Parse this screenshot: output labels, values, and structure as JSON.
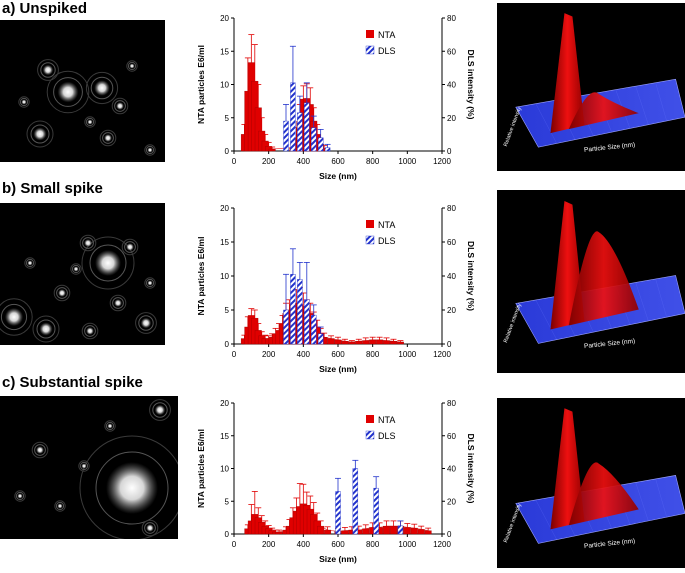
{
  "panels": [
    {
      "label": "a) Unspiked",
      "chart_data": {
        "type": "bar",
        "title": "",
        "xlabel": "Size (nm)",
        "ylabel": "NTA particles E6/ml",
        "y2label": "DLS intensity (%)",
        "xlim": [
          0,
          1200
        ],
        "ylim": [
          0,
          20
        ],
        "y2lim": [
          0,
          80
        ],
        "xticks": [
          0,
          200,
          400,
          600,
          800,
          1000,
          1200
        ],
        "yticks": [
          0,
          5,
          10,
          15,
          20
        ],
        "y2ticks": [
          0,
          20,
          40,
          60,
          80
        ],
        "legend": [
          "NTA",
          "DLS"
        ],
        "legend_position": "top-right",
        "series": [
          {
            "name": "NTA",
            "color": "#e00000",
            "axis": "left",
            "x": [
              60,
              80,
              100,
              120,
              140,
              160,
              180,
              200,
              220,
              340,
              360,
              380,
              400,
              420,
              440,
              460,
              480,
              500,
              520
            ],
            "y": [
              2.5,
              9,
              13.3,
              10.5,
              6.5,
              3.0,
              1.5,
              0.7,
              0.3,
              0.5,
              2.0,
              4.5,
              7.8,
              7.9,
              7.0,
              4.5,
              2.5,
              1.0,
              0.4
            ],
            "err": [
              1.5,
              5,
              4.2,
              5.5,
              3.5,
              2.0,
              1.0,
              0.6,
              0.3,
              0.5,
              1.5,
              2.5,
              2.0,
              2.2,
              2.5,
              2.0,
              1.5,
              0.8,
              0.4
            ]
          },
          {
            "name": "DLS",
            "color": "#2233cc",
            "axis": "right",
            "x": [
              300,
              340,
              380,
              420,
              460,
              500,
              540
            ],
            "y": [
              18,
              41,
              23,
              29,
              14,
              8,
              2
            ],
            "err": [
              10,
              22,
              10,
              12,
              7,
              5,
              2
            ]
          }
        ]
      },
      "image": {
        "dots": [
          [
            68,
            72,
            8
          ],
          [
            102,
            68,
            6
          ],
          [
            40,
            114,
            5
          ],
          [
            48,
            50,
            4
          ],
          [
            108,
            118,
            3
          ],
          [
            132,
            46,
            2
          ],
          [
            120,
            86,
            3
          ],
          [
            24,
            82,
            2
          ],
          [
            90,
            102,
            2
          ],
          [
            150,
            130,
            2
          ]
        ],
        "surface_front": "#2a3ad8",
        "surface_back": "#4050e8",
        "peak_color": "#ee1010",
        "peak2_height": 0.15,
        "z_label": "Relative intensity",
        "x_label": "Particle Size (nm)"
      }
    },
    {
      "label": "b) Small spike",
      "chart_data": {
        "type": "bar",
        "title": "",
        "xlabel": "Size (nm)",
        "ylabel": "NTA particles E6/ml",
        "y2label": "DLS intensity (%)",
        "xlim": [
          0,
          1200
        ],
        "ylim": [
          0,
          20
        ],
        "y2lim": [
          0,
          80
        ],
        "xticks": [
          0,
          200,
          400,
          600,
          800,
          1000,
          1200
        ],
        "yticks": [
          0,
          5,
          10,
          15,
          20
        ],
        "y2ticks": [
          0,
          20,
          40,
          60,
          80
        ],
        "legend": [
          "NTA",
          "DLS"
        ],
        "legend_position": "top-right",
        "series": [
          {
            "name": "NTA",
            "color": "#e00000",
            "axis": "left",
            "x": [
              60,
              80,
              100,
              120,
              140,
              160,
              180,
              200,
              220,
              240,
              260,
              280,
              300,
              320,
              340,
              360,
              380,
              400,
              420,
              440,
              460,
              480,
              500,
              520,
              560,
              600,
              640,
              680,
              720,
              760,
              800,
              840,
              880,
              920,
              960
            ],
            "y": [
              0.8,
              2.5,
              4.2,
              3.8,
              2.0,
              1.2,
              0.8,
              0.8,
              1.0,
              1.5,
              2.0,
              3.0,
              4.5,
              5.0,
              5.8,
              6.0,
              5.8,
              5.5,
              5.0,
              4.5,
              3.5,
              2.5,
              1.5,
              1.0,
              0.8,
              0.6,
              0.4,
              0.3,
              0.4,
              0.5,
              0.6,
              0.6,
              0.5,
              0.4,
              0.3
            ],
            "err": [
              0.5,
              1.5,
              1.0,
              1.2,
              1.0,
              0.6,
              0.5,
              0.4,
              0.5,
              0.8,
              1.0,
              1.2,
              1.5,
              1.5,
              2.0,
              2.0,
              2.5,
              2.0,
              1.5,
              1.5,
              1.2,
              1.0,
              0.8,
              0.6,
              0.4,
              0.4,
              0.3,
              0.2,
              0.3,
              0.4,
              0.4,
              0.4,
              0.4,
              0.3,
              0.2
            ]
          },
          {
            "name": "DLS",
            "color": "#2233cc",
            "axis": "right",
            "x": [
              300,
              340,
              380,
              420,
              460,
              500
            ],
            "y": [
              20,
              41,
              38,
              26,
              17,
              6
            ],
            "err": [
              21,
              15,
              10,
              22,
              6,
              4
            ]
          }
        ]
      },
      "image": {
        "dots": [
          [
            108,
            60,
            10
          ],
          [
            14,
            114,
            7
          ],
          [
            46,
            126,
            5
          ],
          [
            88,
            40,
            3
          ],
          [
            130,
            44,
            3
          ],
          [
            62,
            90,
            3
          ],
          [
            118,
            100,
            3
          ],
          [
            30,
            60,
            2
          ],
          [
            146,
            120,
            4
          ],
          [
            90,
            128,
            3
          ],
          [
            76,
            66,
            2
          ],
          [
            150,
            80,
            2
          ]
        ],
        "surface_front": "#2a3ad8",
        "surface_back": "#4050e8",
        "peak_color": "#ee1010",
        "peak2_height": 0.75,
        "z_label": "Relative intensity",
        "x_label": "Particle Size (nm)"
      }
    },
    {
      "label": "c) Substantial spike",
      "chart_data": {
        "type": "bar",
        "title": "",
        "xlabel": "Size (nm)",
        "ylabel": "NTA particles E6/ml",
        "y2label": "DLS intensity (%)",
        "xlim": [
          0,
          1200
        ],
        "ylim": [
          0,
          20
        ],
        "y2lim": [
          0,
          80
        ],
        "xticks": [
          0,
          200,
          400,
          600,
          800,
          1000,
          1200
        ],
        "yticks": [
          0,
          5,
          10,
          15,
          20
        ],
        "y2ticks": [
          0,
          20,
          40,
          60,
          80
        ],
        "legend": [
          "NTA",
          "DLS"
        ],
        "legend_position": "top-right",
        "series": [
          {
            "name": "NTA",
            "color": "#e00000",
            "axis": "left",
            "x": [
              80,
              100,
              120,
              140,
              160,
              180,
              200,
              220,
              240,
              260,
              300,
              320,
              340,
              360,
              380,
              400,
              420,
              440,
              460,
              480,
              500,
              540,
              600,
              640,
              680,
              720,
              760,
              800,
              840,
              880,
              920,
              960,
              1000,
              1040,
              1080,
              1120
            ],
            "y": [
              0.8,
              2.0,
              3.0,
              2.5,
              1.8,
              1.2,
              0.8,
              0.5,
              0.3,
              0.3,
              0.6,
              1.2,
              2.5,
              3.5,
              4.2,
              4.6,
              4.4,
              3.8,
              3.0,
              2.0,
              1.2,
              0.6,
              0.4,
              0.5,
              0.6,
              0.6,
              0.8,
              1.0,
              1.0,
              1.2,
              1.2,
              1.2,
              1.0,
              0.9,
              0.7,
              0.5
            ],
            "err": [
              0.6,
              2.5,
              3.5,
              1.5,
              1.0,
              0.8,
              0.5,
              0.4,
              0.3,
              0.3,
              0.5,
              1.0,
              1.5,
              2.0,
              3.5,
              3.0,
              2.0,
              2.0,
              1.8,
              1.2,
              0.8,
              0.5,
              0.4,
              0.5,
              0.5,
              0.6,
              0.6,
              0.7,
              0.7,
              0.8,
              0.8,
              0.8,
              0.6,
              0.6,
              0.5,
              0.4
            ]
          },
          {
            "name": "DLS",
            "color": "#2233cc",
            "axis": "right",
            "x": [
              600,
              700,
              820,
              960
            ],
            "y": [
              26,
              40,
              28,
              5
            ],
            "err": [
              8,
              5,
              7,
              3
            ]
          }
        ]
      },
      "image": {
        "dots": [
          [
            132,
            92,
            20
          ],
          [
            160,
            14,
            4
          ],
          [
            40,
            54,
            3
          ],
          [
            150,
            132,
            3
          ],
          [
            60,
            110,
            2
          ],
          [
            110,
            30,
            2
          ],
          [
            20,
            100,
            2
          ],
          [
            84,
            70,
            2
          ]
        ],
        "surface_front": "#2a3ad8",
        "surface_back": "#4050e8",
        "peak_color": "#ee1010",
        "peak2_height": 0.45,
        "z_label": "Relative intensity",
        "x_label": "Particle Size (nm)"
      }
    }
  ]
}
